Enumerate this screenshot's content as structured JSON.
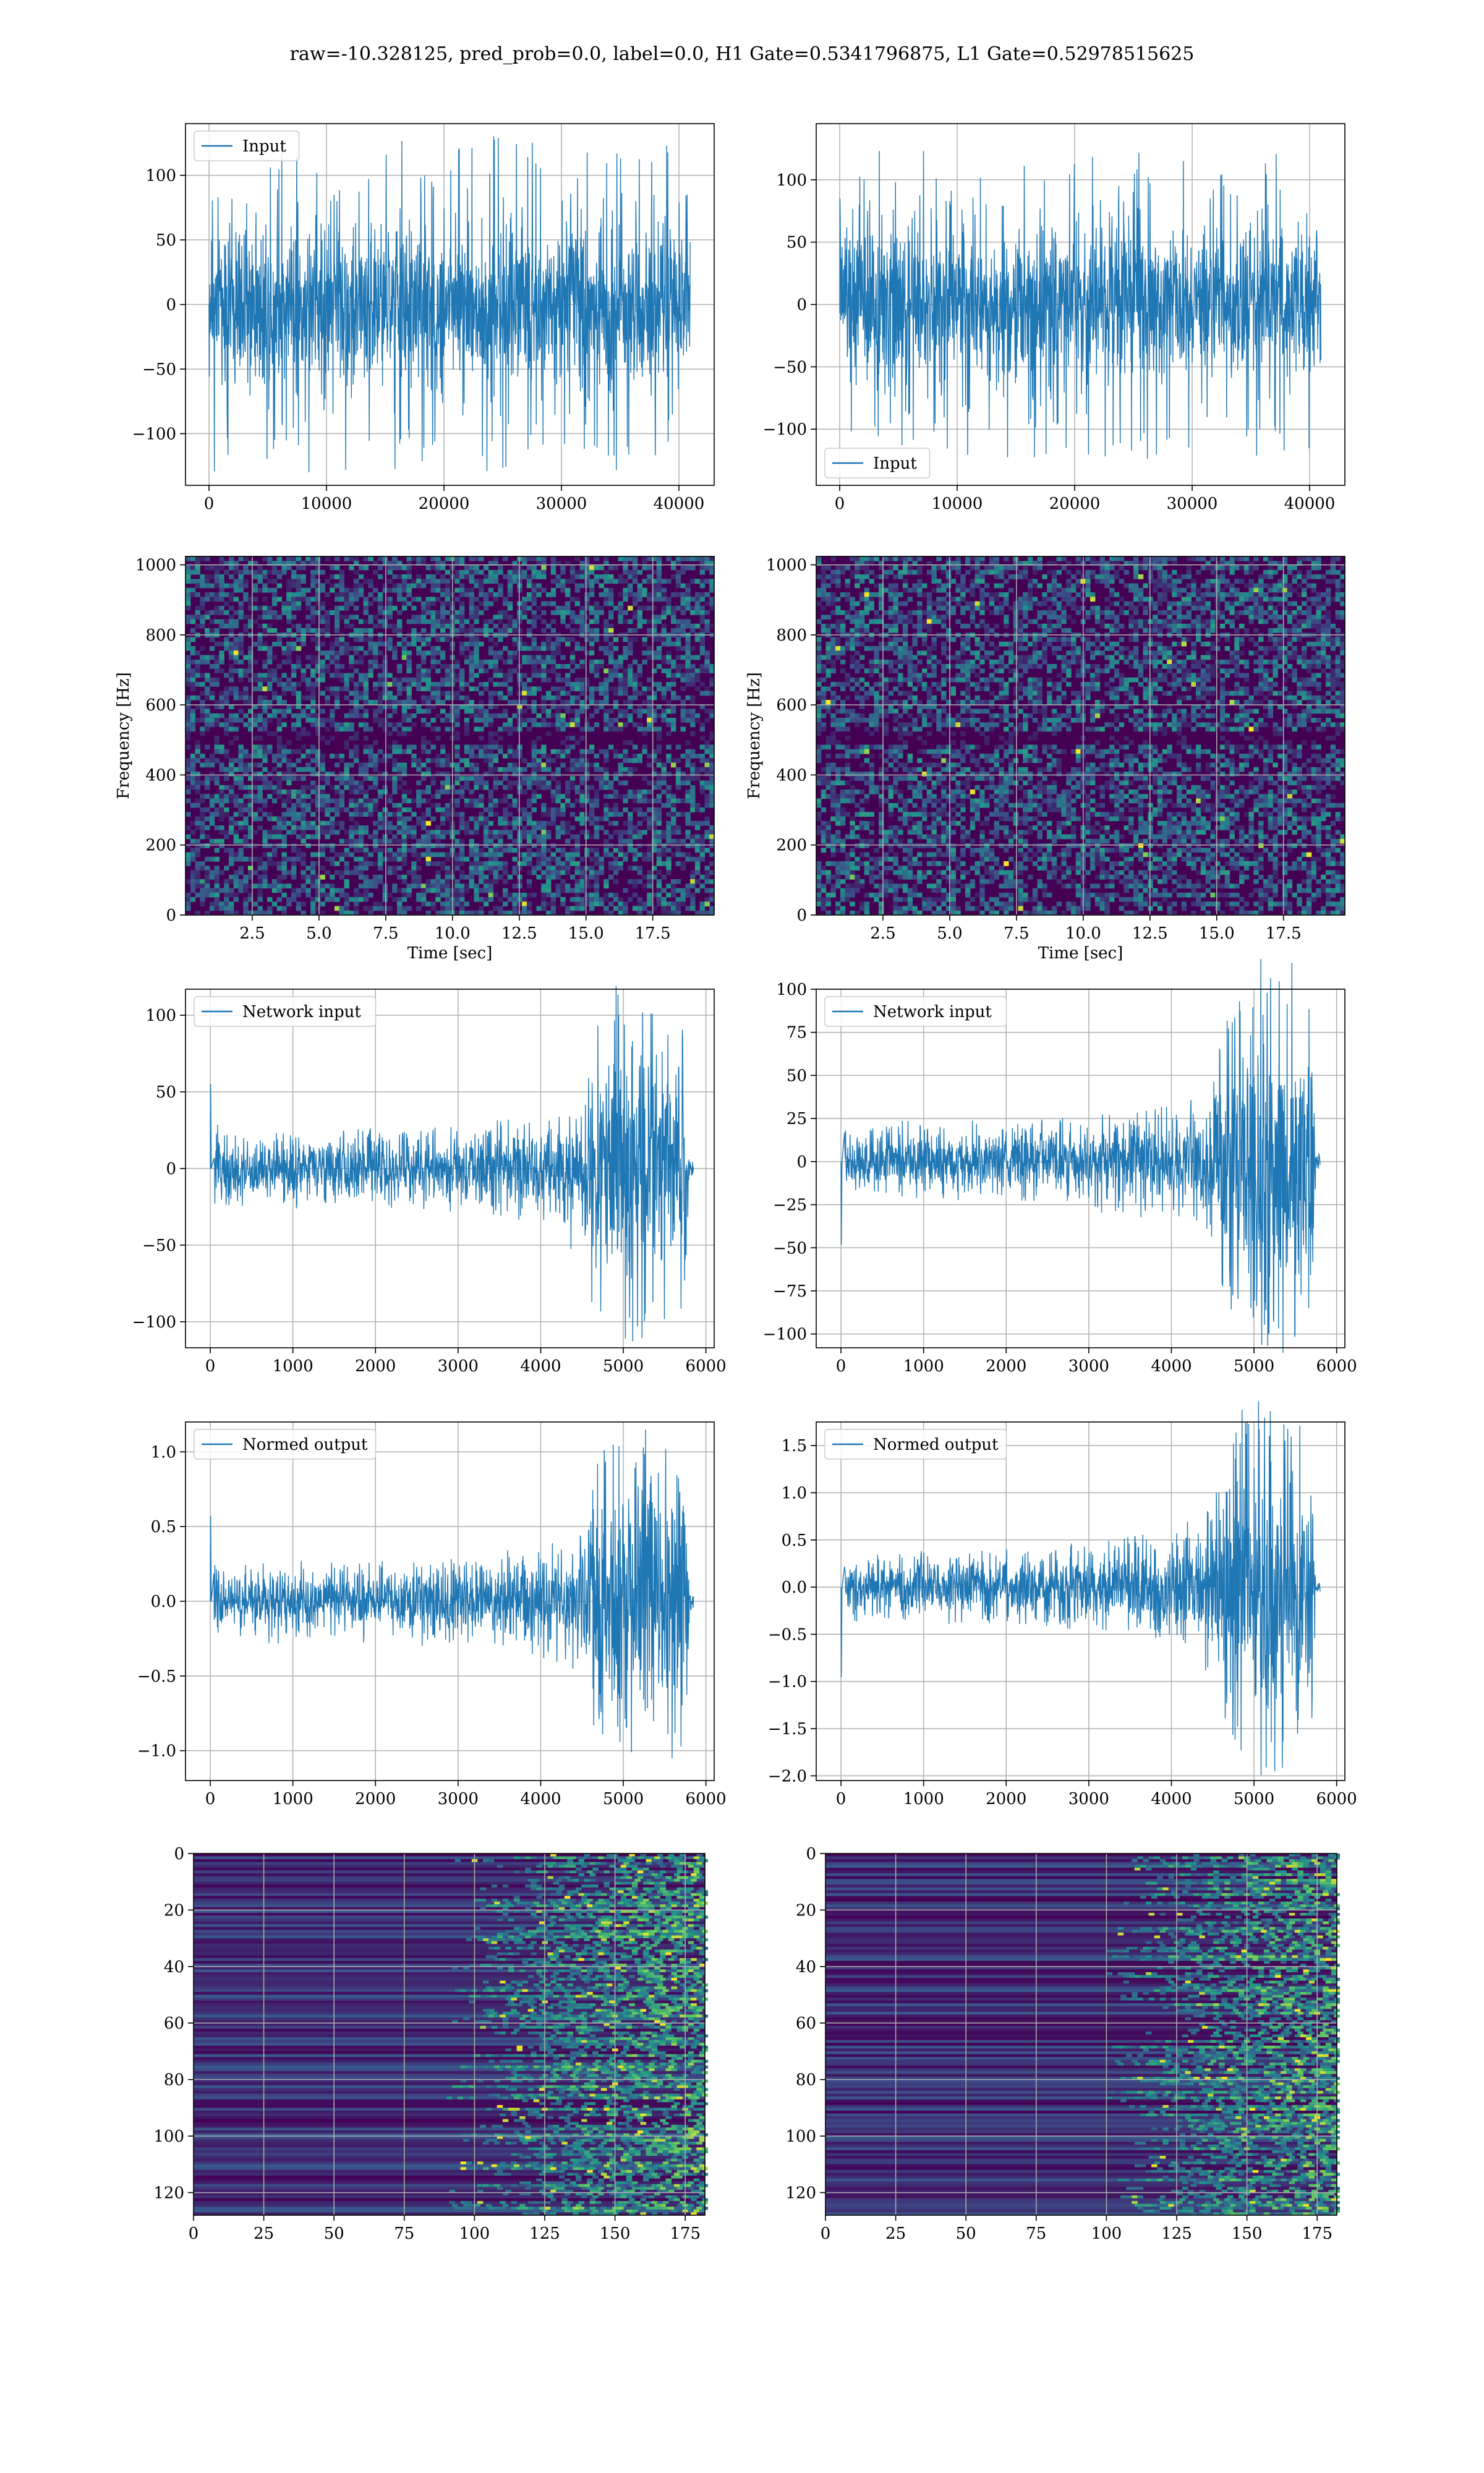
{
  "figure_title": "raw=-10.328125, pred_prob=0.0, label=0.0, H1 Gate=0.5341796875, L1 Gate=0.52978515625",
  "colors": {
    "line": "#1f77b4",
    "grid": "#b0b0b0",
    "axes": "#000000",
    "viridis_low": "#440154",
    "viridis_mid": "#21918c",
    "viridis_high": "#fde725"
  },
  "chart_data": [
    {
      "id": "input_h1",
      "type": "line",
      "title": "",
      "xlabel": "",
      "ylabel": "",
      "xlim": [
        -2000,
        43000
      ],
      "ylim": [
        -140,
        140
      ],
      "xticks": [
        0,
        10000,
        20000,
        30000,
        40000
      ],
      "yticks": [
        -100,
        -50,
        0,
        50,
        100
      ],
      "series": [
        {
          "name": "Input",
          "envelope": {
            "x": [
              0,
              10000,
              20000,
              30000,
              40960
            ],
            "typical": 75,
            "peak": 130
          }
        }
      ],
      "legend": "upper-left",
      "grid": true
    },
    {
      "id": "input_l1",
      "type": "line",
      "title": "",
      "xlabel": "",
      "ylabel": "",
      "xlim": [
        -2000,
        43000
      ],
      "ylim": [
        -145,
        145
      ],
      "xticks": [
        0,
        10000,
        20000,
        30000,
        40000
      ],
      "yticks": [
        -100,
        -50,
        0,
        50,
        100
      ],
      "series": [
        {
          "name": "Input",
          "envelope": {
            "x": [
              0,
              10000,
              20000,
              30000,
              40960
            ],
            "typical": 70,
            "peak": 125
          }
        }
      ],
      "legend": "lower-left",
      "grid": true
    },
    {
      "id": "spec_h1",
      "type": "heatmap",
      "title": "",
      "xlabel": "Time [sec]",
      "ylabel": "Frequency [Hz]",
      "xlim": [
        0,
        19.8
      ],
      "ylim": [
        0,
        1024
      ],
      "xticks": [
        2.5,
        5.0,
        7.5,
        10.0,
        12.5,
        15.0,
        17.5
      ],
      "yticks": [
        0,
        200,
        400,
        600,
        800,
        1000
      ],
      "dark_band_hz": [
        480,
        520
      ],
      "colormap": "viridis",
      "grid": true
    },
    {
      "id": "spec_l1",
      "type": "heatmap",
      "title": "",
      "xlabel": "Time [sec]",
      "ylabel": "Frequency [Hz]",
      "xlim": [
        0,
        19.8
      ],
      "ylim": [
        0,
        1024
      ],
      "xticks": [
        2.5,
        5.0,
        7.5,
        10.0,
        12.5,
        15.0,
        17.5
      ],
      "yticks": [
        0,
        200,
        400,
        600,
        800,
        1000
      ],
      "dark_band_hz": [
        480,
        520
      ],
      "colormap": "viridis",
      "grid": true
    },
    {
      "id": "net_input_h1",
      "type": "line",
      "title": "",
      "xlabel": "",
      "ylabel": "",
      "xlim": [
        -300,
        6100
      ],
      "ylim": [
        -117,
        117
      ],
      "xticks": [
        0,
        1000,
        2000,
        3000,
        4000,
        5000,
        6000
      ],
      "yticks": [
        -100,
        -50,
        0,
        50,
        100
      ],
      "series": [
        {
          "name": "Network input",
          "envelope": {
            "x": [
              0,
              40,
              500,
              1000,
              2000,
              3000,
              3500,
              4000,
              4500,
              4700,
              4900,
              5200,
              5500,
              5750,
              5800,
              5850
            ],
            "amplitude": [
              55,
              22,
              20,
              21,
              22,
              24,
              27,
              30,
              40,
              85,
              100,
              95,
              90,
              85,
              5,
              5
            ]
          }
        }
      ],
      "legend": "upper-left",
      "grid": true
    },
    {
      "id": "net_input_l1",
      "type": "line",
      "title": "",
      "xlabel": "",
      "ylabel": "",
      "xlim": [
        -300,
        6100
      ],
      "ylim": [
        -108,
        100
      ],
      "xticks": [
        0,
        1000,
        2000,
        3000,
        4000,
        5000,
        6000
      ],
      "yticks": [
        -100,
        -75,
        -50,
        -25,
        0,
        25,
        50,
        75,
        100
      ],
      "series": [
        {
          "name": "Network input",
          "envelope": {
            "x": [
              0,
              40,
              500,
              1000,
              2000,
              3000,
              3500,
              4000,
              4500,
              4700,
              4900,
              5200,
              5500,
              5700,
              5750,
              5800
            ],
            "amplitude": [
              -48,
              17,
              17,
              18,
              19,
              22,
              25,
              28,
              40,
              80,
              95,
              90,
              85,
              80,
              4,
              4
            ]
          }
        }
      ],
      "legend": "upper-left",
      "grid": true
    },
    {
      "id": "normed_h1",
      "type": "line",
      "title": "",
      "xlabel": "",
      "ylabel": "",
      "xlim": [
        -300,
        6100
      ],
      "ylim": [
        -1.2,
        1.2
      ],
      "xticks": [
        0,
        1000,
        2000,
        3000,
        4000,
        5000,
        6000
      ],
      "yticks": [
        -1.0,
        -0.5,
        0.0,
        0.5,
        1.0
      ],
      "series": [
        {
          "name": "Normed output",
          "envelope": {
            "x": [
              0,
              40,
              500,
              1000,
              2000,
              3000,
              3500,
              4000,
              4500,
              4700,
              4900,
              5200,
              5500,
              5750,
              5800,
              5850
            ],
            "amplitude": [
              0.57,
              0.22,
              0.2,
              0.21,
              0.22,
              0.24,
              0.27,
              0.3,
              0.4,
              0.85,
              1.05,
              1.0,
              0.95,
              0.9,
              0.05,
              0.05
            ]
          }
        }
      ],
      "legend": "upper-left",
      "grid": true
    },
    {
      "id": "normed_l1",
      "type": "line",
      "title": "",
      "xlabel": "",
      "ylabel": "",
      "xlim": [
        -300,
        6100
      ],
      "ylim": [
        -2.05,
        1.75
      ],
      "xticks": [
        0,
        1000,
        2000,
        3000,
        4000,
        5000,
        6000
      ],
      "yticks": [
        -2.0,
        -1.5,
        -1.0,
        -0.5,
        0.0,
        0.5,
        1.0,
        1.5
      ],
      "series": [
        {
          "name": "Normed output",
          "envelope": {
            "x": [
              0,
              40,
              500,
              1000,
              2000,
              3000,
              3500,
              4000,
              4500,
              4700,
              4900,
              5200,
              5500,
              5700,
              5750,
              5800
            ],
            "amplitude": [
              -0.95,
              0.3,
              0.3,
              0.32,
              0.34,
              0.38,
              0.45,
              0.5,
              0.7,
              1.45,
              1.75,
              1.65,
              1.55,
              1.45,
              0.07,
              0.07
            ]
          }
        }
      ],
      "legend": "upper-left",
      "grid": true
    },
    {
      "id": "features_h1",
      "type": "heatmap",
      "title": "",
      "xlabel": "",
      "ylabel": "",
      "xlim": [
        0,
        182
      ],
      "ylim": [
        128,
        0
      ],
      "xticks": [
        0,
        25,
        50,
        75,
        100,
        125,
        150,
        175
      ],
      "yticks": [
        0,
        20,
        40,
        60,
        80,
        100,
        120
      ],
      "activity_onset_col": 110,
      "colormap": "viridis",
      "grid": true
    },
    {
      "id": "features_l1",
      "type": "heatmap",
      "title": "",
      "xlabel": "",
      "ylabel": "",
      "xlim": [
        0,
        182
      ],
      "ylim": [
        128,
        0
      ],
      "xticks": [
        0,
        25,
        50,
        75,
        100,
        125,
        150,
        175
      ],
      "yticks": [
        0,
        20,
        40,
        60,
        80,
        100,
        120
      ],
      "activity_onset_col": 120,
      "colormap": "viridis",
      "grid": true
    }
  ]
}
